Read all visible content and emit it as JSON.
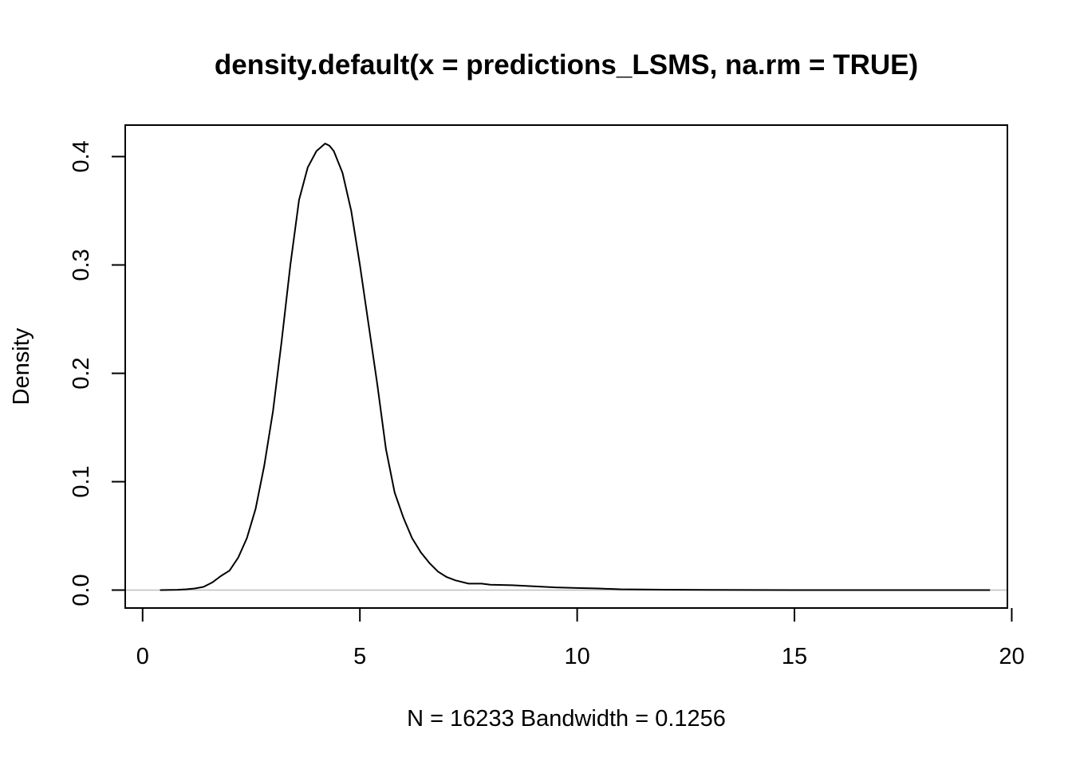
{
  "chart_data": {
    "type": "line",
    "title": "density.default(x = predictions_LSMS, na.rm = TRUE)",
    "xlabel": "N = 16233   Bandwidth = 0.1256",
    "ylabel": "Density",
    "xlim": [
      -0.4,
      19.9
    ],
    "ylim": [
      -0.0165,
      0.429
    ],
    "x_ticks": [
      0,
      5,
      10,
      15,
      20
    ],
    "x_tick_labels": [
      "0",
      "5",
      "10",
      "15",
      "20"
    ],
    "y_ticks": [
      0.0,
      0.1,
      0.2,
      0.3,
      0.4
    ],
    "y_tick_labels": [
      "0.0",
      "0.1",
      "0.2",
      "0.3",
      "0.4"
    ],
    "grid": false,
    "zero_line": 0,
    "series": [
      {
        "x": [
          0.4,
          0.8,
          1.0,
          1.2,
          1.4,
          1.6,
          1.8,
          2.0,
          2.2,
          2.4,
          2.6,
          2.8,
          3.0,
          3.2,
          3.4,
          3.6,
          3.8,
          4.0,
          4.2,
          4.3,
          4.4,
          4.6,
          4.8,
          5.0,
          5.2,
          5.4,
          5.6,
          5.8,
          6.0,
          6.2,
          6.4,
          6.6,
          6.8,
          7.0,
          7.2,
          7.5,
          7.8,
          8.0,
          8.5,
          9.0,
          9.5,
          10.0,
          10.5,
          11.0,
          12.0,
          13.0,
          14.0,
          15.0,
          16.0,
          17.0,
          18.0,
          19.0,
          19.5
        ],
        "y": [
          0.0,
          0.0003,
          0.0008,
          0.0015,
          0.003,
          0.007,
          0.013,
          0.018,
          0.03,
          0.048,
          0.075,
          0.115,
          0.165,
          0.23,
          0.3,
          0.36,
          0.39,
          0.405,
          0.412,
          0.41,
          0.405,
          0.385,
          0.35,
          0.3,
          0.245,
          0.19,
          0.13,
          0.09,
          0.067,
          0.048,
          0.035,
          0.025,
          0.017,
          0.012,
          0.009,
          0.006,
          0.006,
          0.005,
          0.0045,
          0.0035,
          0.0025,
          0.002,
          0.0015,
          0.0008,
          0.0004,
          0.0002,
          0.0001,
          0.0,
          0.0,
          0.0,
          0.0,
          0.0,
          0.0
        ]
      }
    ]
  }
}
